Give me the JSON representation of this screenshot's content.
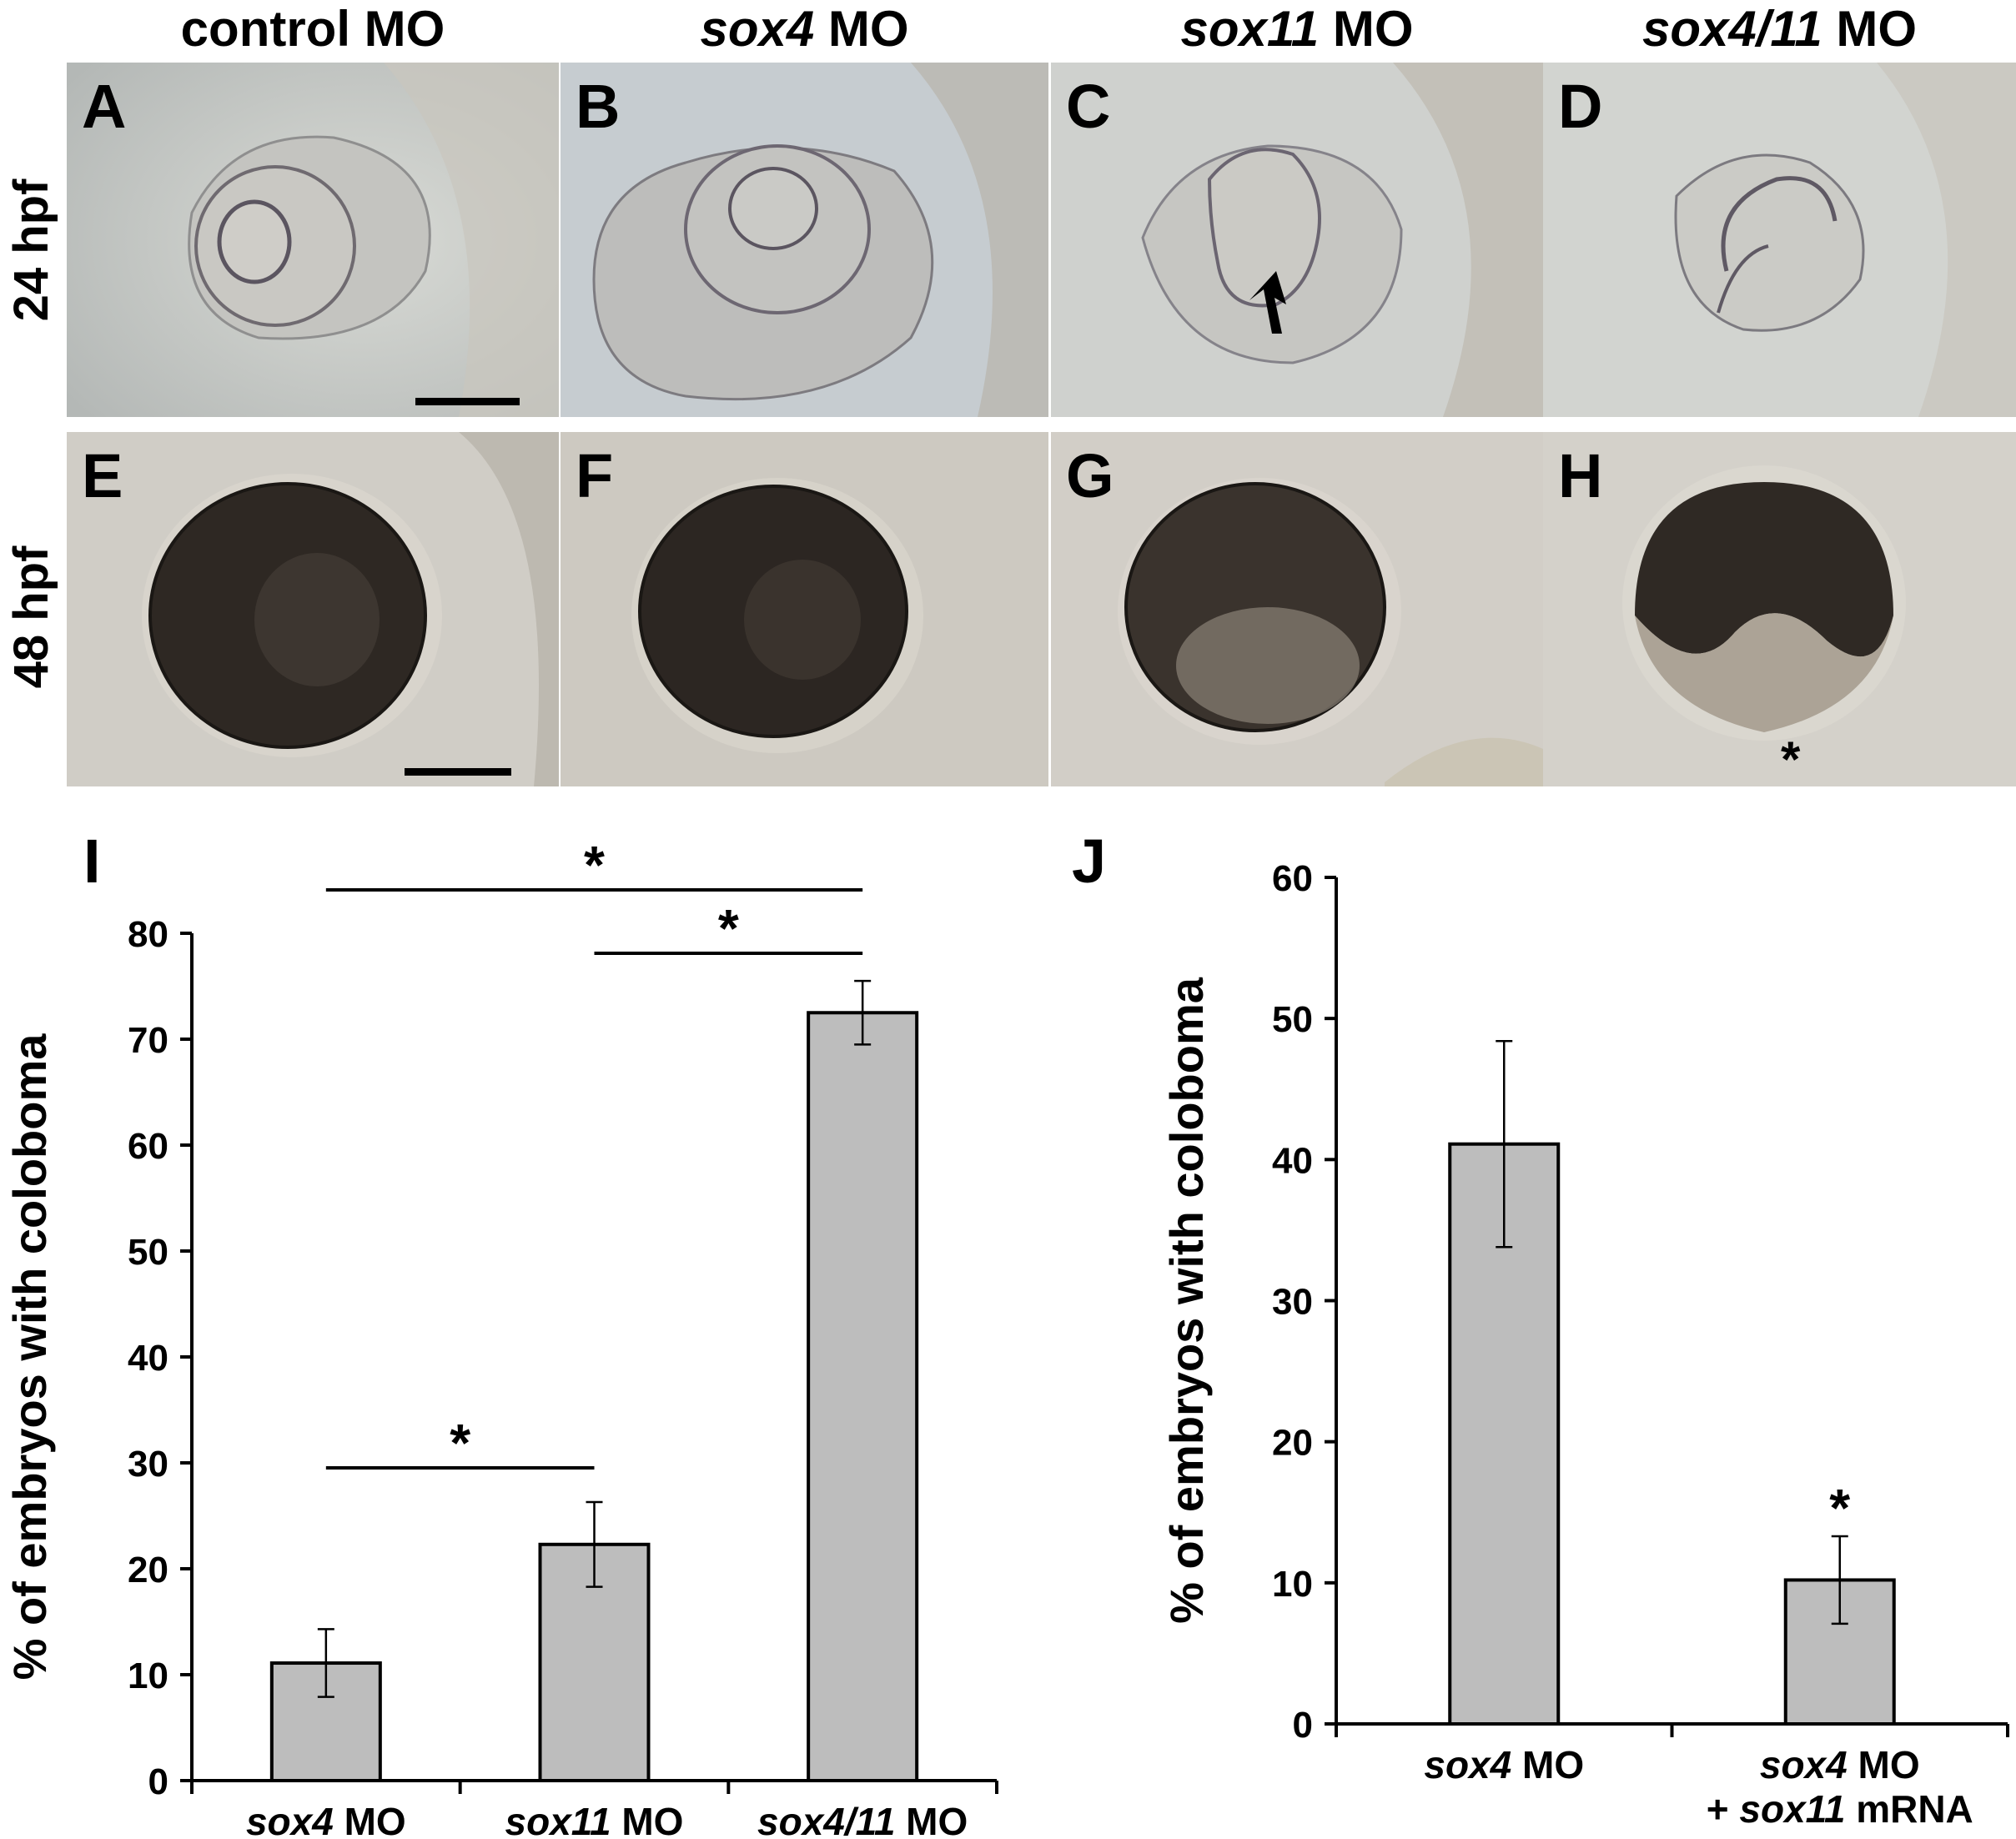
{
  "columns": [
    {
      "italic": "",
      "plain": "control MO"
    },
    {
      "italic": "sox4",
      "plain": " MO"
    },
    {
      "italic": "sox11",
      "plain": " MO"
    },
    {
      "italic": "sox4/11",
      "plain": " MO"
    }
  ],
  "rows": [
    "24 hpf",
    "48 hpf"
  ],
  "panels": [
    "A",
    "B",
    "C",
    "D",
    "E",
    "F",
    "G",
    "H"
  ],
  "colors": {
    "bar_fill": "#bdbdbd",
    "bar_stroke": "#000000",
    "bg24": "#cfd2d2",
    "bg48": "#cfccc5",
    "eye_dark": "#2a2420"
  },
  "chart_data": [
    {
      "panel_label": "I",
      "type": "bar",
      "categories": [
        {
          "italic": "sox4",
          "plain": " MO"
        },
        {
          "italic": "sox11",
          "plain": " MO"
        },
        {
          "italic": "sox4/11",
          "plain": " MO"
        }
      ],
      "values": [
        11.1,
        22.3,
        72.5
      ],
      "errors": [
        3.2,
        4.0,
        3.0
      ],
      "ylabel": "% of embryos with coloboma",
      "ylim": [
        0,
        80
      ],
      "yticks": [
        "0",
        "10",
        "20",
        "30",
        "40",
        "50",
        "60",
        "70",
        "80"
      ],
      "significance": [
        {
          "from": 0,
          "to": 2,
          "label": "*"
        },
        {
          "from": 1,
          "to": 2,
          "label": "*"
        },
        {
          "from": 0,
          "to": 1,
          "label": "*"
        }
      ]
    },
    {
      "panel_label": "J",
      "type": "bar",
      "categories": [
        {
          "italic": "sox4",
          "plain": " MO"
        },
        {
          "italic": "sox4",
          "plain": " MO",
          "line2_prefix": "+ ",
          "line2_italic": "sox11",
          "line2_plain": " mRNA"
        }
      ],
      "values": [
        41.1,
        10.2
      ],
      "errors": [
        7.3,
        3.1
      ],
      "ylabel": "% of embryos with coloboma",
      "ylim": [
        0,
        60
      ],
      "yticks": [
        "0",
        "10",
        "20",
        "30",
        "40",
        "50",
        "60"
      ],
      "bar_annotations": [
        "",
        "*"
      ]
    }
  ]
}
